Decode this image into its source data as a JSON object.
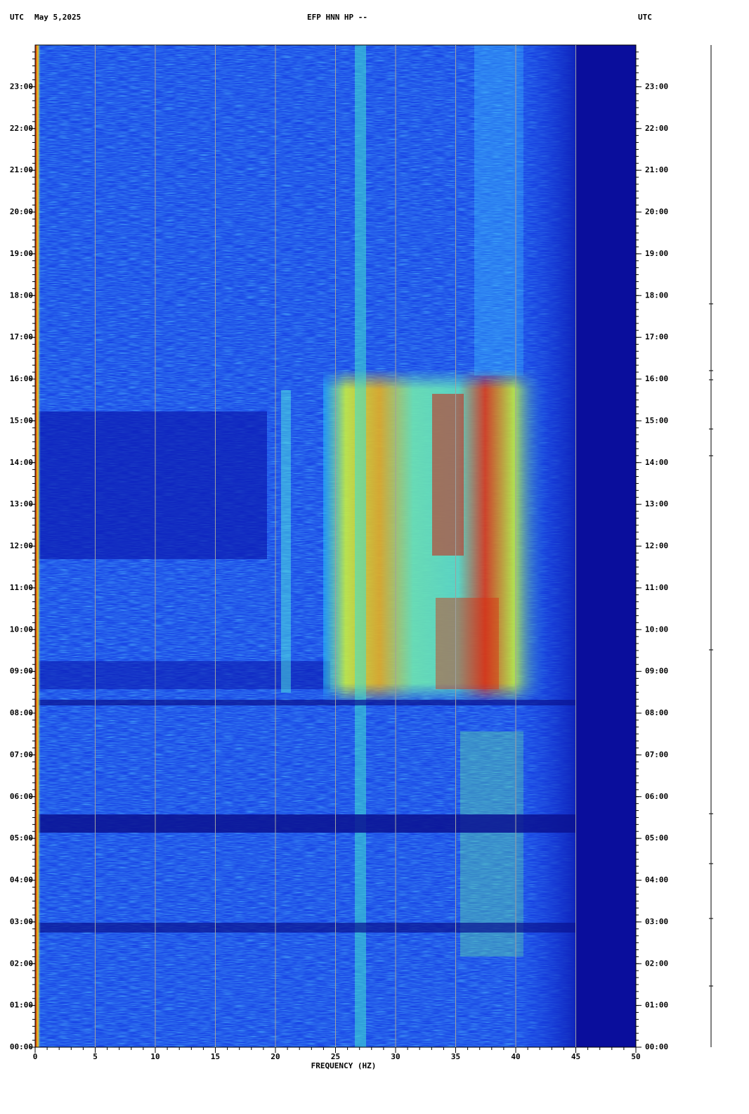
{
  "chart_data": {
    "type": "spectrogram",
    "title": "EFP HNN HP --",
    "date": "May 5,2025",
    "y_label_left": "UTC",
    "y_label_right": "UTC",
    "x_label": "FREQUENCY (HZ)",
    "xlim": [
      0,
      50
    ],
    "xticks": [
      0,
      5,
      10,
      15,
      20,
      25,
      30,
      35,
      40,
      45,
      50
    ],
    "ylim": [
      0,
      24
    ],
    "yticks": [
      {
        "value": 0,
        "label": "00:00"
      },
      {
        "value": 1,
        "label": "01:00"
      },
      {
        "value": 2,
        "label": "02:00"
      },
      {
        "value": 3,
        "label": "03:00"
      },
      {
        "value": 4,
        "label": "04:00"
      },
      {
        "value": 5,
        "label": "05:00"
      },
      {
        "value": 6,
        "label": "06:00"
      },
      {
        "value": 7,
        "label": "07:00"
      },
      {
        "value": 8,
        "label": "08:00"
      },
      {
        "value": 9,
        "label": "09:00"
      },
      {
        "value": 10,
        "label": "10:00"
      },
      {
        "value": 11,
        "label": "11:00"
      },
      {
        "value": 12,
        "label": "12:00"
      },
      {
        "value": 13,
        "label": "13:00"
      },
      {
        "value": 14,
        "label": "14:00"
      },
      {
        "value": 15,
        "label": "15:00"
      },
      {
        "value": 16,
        "label": "16:00"
      },
      {
        "value": 17,
        "label": "17:00"
      },
      {
        "value": 18,
        "label": "18:00"
      },
      {
        "value": 19,
        "label": "19:00"
      },
      {
        "value": 20,
        "label": "20:00"
      },
      {
        "value": 21,
        "label": "21:00"
      },
      {
        "value": 22,
        "label": "22:00"
      },
      {
        "value": 23,
        "label": "23:00"
      }
    ],
    "grid": true
  }
}
